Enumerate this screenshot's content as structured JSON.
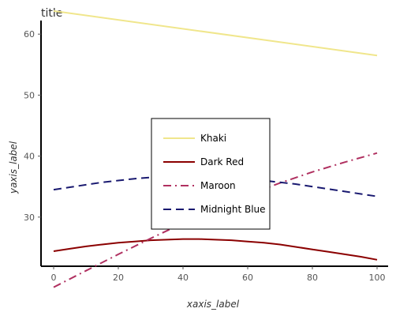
{
  "chart_data": {
    "type": "line",
    "title": "title",
    "xlabel": "xaxis_label",
    "ylabel": "yaxis_label",
    "xlim": [
      0,
      100
    ],
    "ylim": [
      20,
      65
    ],
    "x_ticks": [
      0,
      20,
      40,
      60,
      80,
      100
    ],
    "y_ticks": [
      30,
      40,
      50,
      60
    ],
    "grid": false,
    "legend_position": "center",
    "series": [
      {
        "name": "Khaki",
        "color": "#f0e68c",
        "dash": "solid",
        "x": [
          0,
          100
        ],
        "y": [
          63.8,
          56.5
        ]
      },
      {
        "name": "Dark Red",
        "color": "#8b0000",
        "dash": "solid",
        "x": [
          0,
          5,
          10,
          15,
          20,
          25,
          30,
          35,
          40,
          45,
          50,
          55,
          60,
          65,
          70,
          75,
          80,
          85,
          90,
          95,
          100
        ],
        "y": [
          24.4,
          24.8,
          25.2,
          25.5,
          25.8,
          26.0,
          26.2,
          26.3,
          26.4,
          26.4,
          26.3,
          26.2,
          26.0,
          25.8,
          25.5,
          25.1,
          24.7,
          24.3,
          23.9,
          23.5,
          23.0
        ]
      },
      {
        "name": "Maroon",
        "color": "#b03060",
        "dash": "dashdot",
        "x": [
          0,
          10,
          20,
          30,
          40,
          50,
          60,
          70,
          80,
          90,
          100
        ],
        "y": [
          18.5,
          21.2,
          23.9,
          26.5,
          29.0,
          31.4,
          33.6,
          35.6,
          37.4,
          39.0,
          40.5
        ]
      },
      {
        "name": "Midnight Blue",
        "color": "#191970",
        "dash": "dashed",
        "x": [
          0,
          5,
          10,
          15,
          20,
          25,
          30,
          35,
          40,
          45,
          50,
          55,
          60,
          65,
          70,
          75,
          80,
          85,
          90,
          95,
          100
        ],
        "y": [
          34.5,
          34.9,
          35.3,
          35.7,
          36.0,
          36.3,
          36.5,
          36.6,
          36.7,
          36.7,
          36.6,
          36.5,
          36.3,
          36.0,
          35.7,
          35.4,
          35.0,
          34.6,
          34.2,
          33.8,
          33.4
        ]
      }
    ],
    "legend_order": [
      "Khaki",
      "Dark Red",
      "Maroon",
      "Midnight Blue"
    ]
  }
}
